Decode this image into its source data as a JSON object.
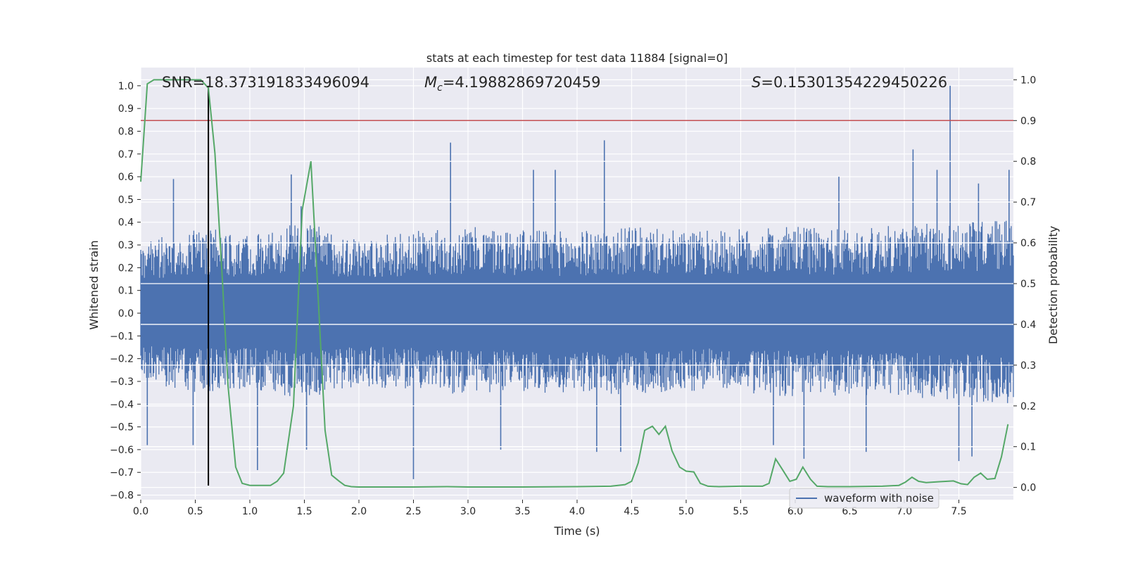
{
  "chart_data": {
    "type": "line",
    "title": "stats at each timestep for test data 11884 [signal=0]",
    "xlabel": "Time (s)",
    "ylabel_left": "Whitened strain",
    "ylabel_right": "Detection probability",
    "xlim": [
      0.0,
      8.0
    ],
    "ylim_left": [
      -0.82,
      1.08
    ],
    "ylim_right": [
      -0.03,
      1.03
    ],
    "x_ticks": [
      "0.0",
      "0.5",
      "1.0",
      "1.5",
      "2.0",
      "2.5",
      "3.0",
      "3.5",
      "4.0",
      "4.5",
      "5.0",
      "5.5",
      "6.0",
      "6.5",
      "7.0",
      "7.5"
    ],
    "y_ticks_left": [
      "−0.8",
      "−0.7",
      "−0.6",
      "−0.5",
      "−0.4",
      "−0.3",
      "−0.2",
      "−0.1",
      "0.0",
      "0.1",
      "0.2",
      "0.3",
      "0.4",
      "0.5",
      "0.6",
      "0.7",
      "0.8",
      "0.9",
      "1.0"
    ],
    "y_ticks_right": [
      "0.0",
      "0.1",
      "0.2",
      "0.3",
      "0.4",
      "0.5",
      "0.6",
      "0.7",
      "0.8",
      "0.9",
      "1.0"
    ],
    "grid": true,
    "legend": {
      "position": "lower-right",
      "entries": [
        "waveform with noise"
      ]
    },
    "annotations": {
      "snr": "SNR=18.373191833496094",
      "mc_symbol": "M",
      "mc_sub": "c",
      "mc_value": "=4.19882869720459",
      "s_symbol": "S",
      "s_value": "=0.15301354229450226"
    },
    "series": [
      {
        "name": "waveform with noise",
        "axis": "left",
        "color": "#4c72b0",
        "description_values": "dense whitened strain noise, spikes up to 1.0 at t≈7.42",
        "envelope": {
          "t": [
            0.0,
            0.5,
            1.0,
            1.5,
            2.0,
            2.5,
            3.0,
            3.5,
            4.0,
            4.5,
            5.0,
            5.5,
            6.0,
            6.5,
            7.0,
            7.5,
            8.0
          ],
          "typical_max": [
            0.32,
            0.38,
            0.35,
            0.4,
            0.33,
            0.36,
            0.38,
            0.37,
            0.36,
            0.38,
            0.36,
            0.37,
            0.38,
            0.37,
            0.39,
            0.4,
            0.42
          ],
          "typical_min": [
            -0.3,
            -0.35,
            -0.33,
            -0.38,
            -0.32,
            -0.34,
            -0.36,
            -0.35,
            -0.35,
            -0.36,
            -0.34,
            -0.35,
            -0.37,
            -0.36,
            -0.37,
            -0.4,
            -0.4
          ]
        },
        "spikes": [
          {
            "t": 0.06,
            "v": -0.58
          },
          {
            "t": 0.3,
            "v": 0.59
          },
          {
            "t": 0.48,
            "v": -0.58
          },
          {
            "t": 0.62,
            "v": -0.51
          },
          {
            "t": 1.07,
            "v": -0.69
          },
          {
            "t": 1.38,
            "v": 0.61
          },
          {
            "t": 1.47,
            "v": 0.47
          },
          {
            "t": 1.52,
            "v": -0.6
          },
          {
            "t": 2.5,
            "v": -0.73
          },
          {
            "t": 2.84,
            "v": 0.75
          },
          {
            "t": 3.3,
            "v": -0.6
          },
          {
            "t": 3.6,
            "v": 0.63
          },
          {
            "t": 3.8,
            "v": 0.63
          },
          {
            "t": 4.25,
            "v": 0.76
          },
          {
            "t": 4.18,
            "v": -0.61
          },
          {
            "t": 4.4,
            "v": -0.61
          },
          {
            "t": 5.8,
            "v": -0.58
          },
          {
            "t": 6.08,
            "v": -0.64
          },
          {
            "t": 6.4,
            "v": 0.6
          },
          {
            "t": 6.65,
            "v": -0.61
          },
          {
            "t": 7.08,
            "v": 0.72
          },
          {
            "t": 7.3,
            "v": 0.63
          },
          {
            "t": 7.42,
            "v": 1.0
          },
          {
            "t": 7.5,
            "v": -0.65
          },
          {
            "t": 7.62,
            "v": -0.63
          },
          {
            "t": 7.68,
            "v": 0.57
          },
          {
            "t": 7.96,
            "v": 0.63
          }
        ]
      },
      {
        "name": "",
        "axis": "right",
        "color": "#55a868",
        "t": [
          0.0,
          0.06,
          0.12,
          0.2,
          0.3,
          0.4,
          0.55,
          0.62,
          0.68,
          0.75,
          0.8,
          0.87,
          0.93,
          1.0,
          1.1,
          1.19,
          1.25,
          1.31,
          1.4,
          1.48,
          1.56,
          1.61,
          1.69,
          1.75,
          1.82,
          1.87,
          1.93,
          2.0,
          2.5,
          2.81,
          3.0,
          3.5,
          4.0,
          4.31,
          4.44,
          4.5,
          4.56,
          4.62,
          4.69,
          4.75,
          4.81,
          4.87,
          4.94,
          5.0,
          5.07,
          5.13,
          5.2,
          5.3,
          5.5,
          5.7,
          5.76,
          5.82,
          5.88,
          5.95,
          6.01,
          6.07,
          6.14,
          6.2,
          6.3,
          6.5,
          6.8,
          6.95,
          7.01,
          7.07,
          7.13,
          7.2,
          7.32,
          7.45,
          7.52,
          7.58,
          7.64,
          7.7,
          7.76,
          7.83,
          7.89,
          7.95
        ],
        "values": [
          0.75,
          0.99,
          1.0,
          1.0,
          1.0,
          1.0,
          1.0,
          0.98,
          0.82,
          0.5,
          0.25,
          0.05,
          0.01,
          0.005,
          0.005,
          0.005,
          0.015,
          0.035,
          0.2,
          0.68,
          0.8,
          0.55,
          0.14,
          0.03,
          0.015,
          0.005,
          0.002,
          0.001,
          0.001,
          0.002,
          0.001,
          0.001,
          0.002,
          0.003,
          0.007,
          0.015,
          0.06,
          0.14,
          0.15,
          0.13,
          0.15,
          0.09,
          0.05,
          0.04,
          0.038,
          0.01,
          0.003,
          0.002,
          0.003,
          0.003,
          0.01,
          0.07,
          0.045,
          0.015,
          0.02,
          0.05,
          0.02,
          0.003,
          0.002,
          0.002,
          0.003,
          0.005,
          0.013,
          0.025,
          0.015,
          0.012,
          0.014,
          0.016,
          0.009,
          0.007,
          0.025,
          0.035,
          0.02,
          0.022,
          0.075,
          0.155
        ]
      }
    ],
    "reference_lines": [
      {
        "type": "hline",
        "axis": "right",
        "value": 0.9,
        "color": "#c44e52"
      },
      {
        "type": "vline",
        "x": 0.62,
        "from": -0.82,
        "to": 1.0,
        "color": "#000000"
      }
    ]
  }
}
